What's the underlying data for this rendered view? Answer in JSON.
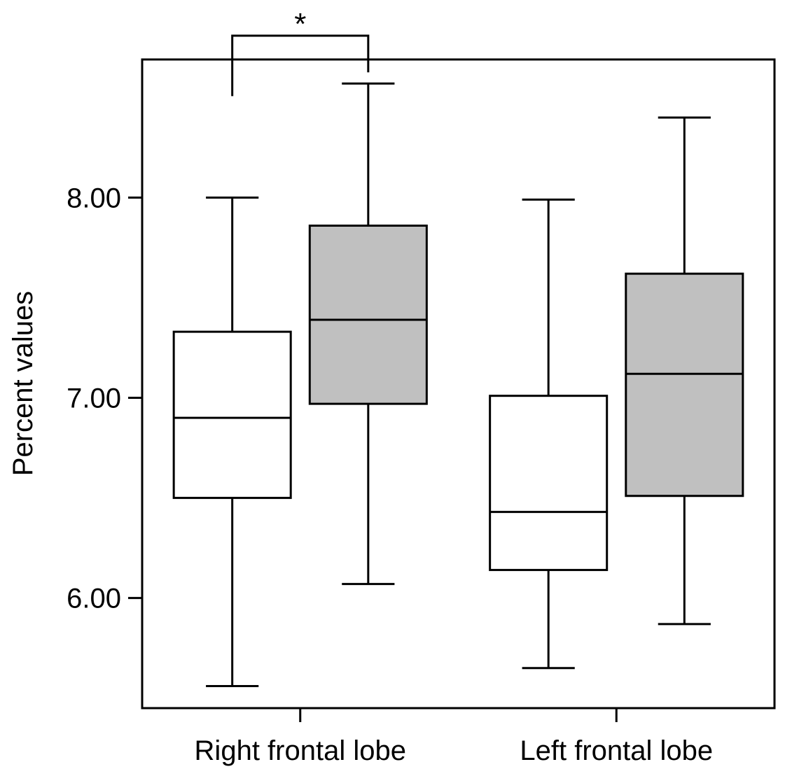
{
  "chart_data": {
    "type": "boxplot",
    "title": "",
    "xlabel": "",
    "ylabel": "Percent values",
    "ylim": [
      5.45,
      8.69
    ],
    "yticks": [
      6.0,
      7.0,
      8.0
    ],
    "ytick_labels": [
      "6.00",
      "7.00",
      "8.00"
    ],
    "categories": [
      "Right frontal lobe",
      "Left frontal lobe"
    ],
    "series": [
      {
        "fill": "#ffffff",
        "boxes": [
          {
            "whisker_low": 5.56,
            "q1": 6.5,
            "median": 6.9,
            "q3": 7.33,
            "whisker_high": 8.0
          },
          {
            "whisker_low": 5.65,
            "q1": 6.14,
            "median": 6.43,
            "q3": 7.01,
            "whisker_high": 7.99
          }
        ]
      },
      {
        "fill": "#c0c0c0",
        "boxes": [
          {
            "whisker_low": 6.07,
            "q1": 6.97,
            "median": 7.39,
            "q3": 7.86,
            "whisker_high": 8.57
          },
          {
            "whisker_low": 5.87,
            "q1": 6.51,
            "median": 7.12,
            "q3": 7.62,
            "whisker_high": 8.4
          }
        ]
      }
    ],
    "significance": [
      {
        "category": "Right frontal lobe",
        "label": "*"
      }
    ],
    "grid": false,
    "legend": "none"
  }
}
